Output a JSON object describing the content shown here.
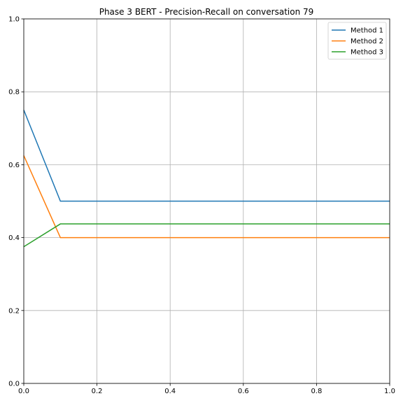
{
  "chart_data": {
    "type": "line",
    "title": "Phase 3 BERT - Precision-Recall on conversation 79",
    "xlabel": "",
    "ylabel": "",
    "xlim": [
      0,
      1
    ],
    "ylim": [
      0,
      1
    ],
    "x_ticks": [
      "0.0",
      "0.2",
      "0.4",
      "0.6",
      "0.8",
      "1.0"
    ],
    "y_ticks": [
      "0.0",
      "0.2",
      "0.4",
      "0.6",
      "0.8",
      "1.0"
    ],
    "grid": true,
    "legend_position": "top-right",
    "x": [
      0.0,
      0.1,
      0.2,
      0.3,
      0.4,
      0.5,
      0.6,
      0.7,
      0.8,
      0.9,
      1.0
    ],
    "series": [
      {
        "name": "Method 1",
        "color": "#1f77b4",
        "values": [
          0.75,
          0.5,
          0.5,
          0.5,
          0.5,
          0.5,
          0.5,
          0.5,
          0.5,
          0.5,
          0.5
        ]
      },
      {
        "name": "Method 2",
        "color": "#ff7f0e",
        "values": [
          0.625,
          0.4,
          0.4,
          0.4,
          0.4,
          0.4,
          0.4,
          0.4,
          0.4,
          0.4,
          0.4
        ]
      },
      {
        "name": "Method 3",
        "color": "#2ca02c",
        "values": [
          0.375,
          0.4375,
          0.4375,
          0.4375,
          0.4375,
          0.4375,
          0.4375,
          0.4375,
          0.4375,
          0.4375,
          0.4375
        ]
      }
    ]
  }
}
